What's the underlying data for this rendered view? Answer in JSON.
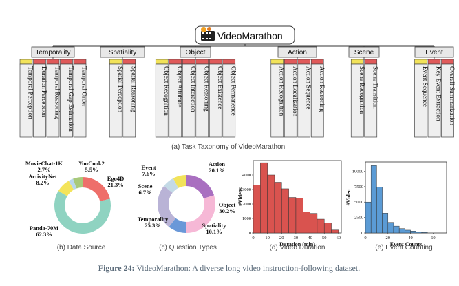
{
  "title": "VideoMarathon",
  "taxonomy": {
    "caption": "(a) Task Taxonomy of VideoMarathon.",
    "categories": [
      {
        "label": "Temporality",
        "tasks": [
          "Temporal Perception",
          "Duration Perception",
          "Temporal Reasoning",
          "Temporal Gap Estimation",
          "Temporal Order"
        ]
      },
      {
        "label": "Spatiality",
        "tasks": [
          "Spatial Perception",
          "Spatial Reasoning"
        ]
      },
      {
        "label": "Object",
        "tasks": [
          "Object Recognition",
          "Object Attribute",
          "Object Interaction",
          "Object Reasoning",
          "Object Existence",
          "Object Permanence"
        ]
      },
      {
        "label": "Action",
        "tasks": [
          "Action Recognition",
          "Action Localization",
          "Action Sequence",
          "Action Reasoning"
        ]
      },
      {
        "label": "Scene",
        "tasks": [
          "Scene Recognition",
          "Scene Transition"
        ]
      },
      {
        "label": "Event",
        "tasks": [
          "Event Sequence",
          "Key Event Extraction",
          "Overall Summarization"
        ]
      }
    ],
    "colors": {
      "yellow": "#f2e35a",
      "red": "#e05a5a"
    }
  },
  "charts": {
    "data_source": {
      "caption": "(b) Data Source",
      "chart_data": {
        "type": "pie",
        "labels": [
          "Ego4D",
          "Panda-70M",
          "ActivityNet",
          "MovieChat-1K",
          "YouCook2"
        ],
        "values": [
          21.3,
          62.3,
          8.2,
          2.7,
          5.5
        ],
        "colors": [
          "#ee6f6a",
          "#8fd3c1",
          "#f4e45a",
          "#b9d7ec",
          "#a8c97a"
        ]
      },
      "labels": [
        {
          "name": "MovieChat-1K",
          "pct": "2.7%"
        },
        {
          "name": "YouCook2",
          "pct": "5.5%"
        },
        {
          "name": "ActivityNet",
          "pct": "8.2%"
        },
        {
          "name": "Ego4D",
          "pct": "21.3%"
        },
        {
          "name": "Panda-70M",
          "pct": "62.3%"
        }
      ]
    },
    "question_types": {
      "caption": "(c) Question Types",
      "chart_data": {
        "type": "pie",
        "labels": [
          "Action",
          "Object",
          "Spatiality",
          "Temporality",
          "Scene",
          "Event"
        ],
        "values": [
          20.1,
          30.2,
          10.1,
          25.3,
          6.7,
          7.6
        ],
        "colors": [
          "#a96fc0",
          "#f6b8d6",
          "#6a98d8",
          "#b9b3d6",
          "#c4dae6",
          "#f2e35a"
        ]
      },
      "labels": [
        {
          "name": "Event",
          "pct": "7.6%"
        },
        {
          "name": "Action",
          "pct": "20.1%"
        },
        {
          "name": "Scene",
          "pct": "6.7%"
        },
        {
          "name": "Object",
          "pct": "30.2%"
        },
        {
          "name": "Temporality",
          "pct": "25.3%"
        },
        {
          "name": "Spatiality",
          "pct": "10.1%"
        }
      ]
    },
    "video_duration": {
      "caption": "(d) Video Duration",
      "chart_data": {
        "type": "bar",
        "xlabel": "Duration (min)",
        "ylabel": "#Videos",
        "color": "#d9534f",
        "bin_width": 5,
        "x_ticks": [
          0,
          10,
          20,
          30,
          40,
          50,
          60
        ],
        "y_ticks": [
          0,
          1000,
          2000,
          3000,
          4000
        ],
        "ylim": [
          0,
          5000
        ],
        "bins": [
          0,
          5,
          10,
          15,
          20,
          25,
          30,
          35,
          40,
          45,
          50,
          55
        ],
        "values": [
          3300,
          4850,
          4000,
          3500,
          3050,
          2450,
          2400,
          1450,
          1350,
          950,
          700,
          200
        ]
      }
    },
    "event_counting": {
      "caption": "(e) Event Counting",
      "chart_data": {
        "type": "bar",
        "xlabel": "Event Counts",
        "ylabel": "#Video",
        "color": "#5b9bd5",
        "bin_width": 5,
        "x_ticks": [
          0,
          20,
          40,
          60
        ],
        "y_ticks": [
          0,
          2500,
          5000,
          7500,
          10000
        ],
        "ylim": [
          0,
          11500
        ],
        "bins": [
          0,
          5,
          10,
          15,
          20,
          25,
          30,
          35,
          40,
          45,
          50
        ],
        "values": [
          5000,
          10900,
          7400,
          3200,
          1700,
          1100,
          700,
          450,
          300,
          180,
          100
        ]
      }
    }
  },
  "figure_caption": {
    "label": "Figure 24:",
    "text": " VideoMarathon: A diverse long video instruction-following dataset."
  }
}
